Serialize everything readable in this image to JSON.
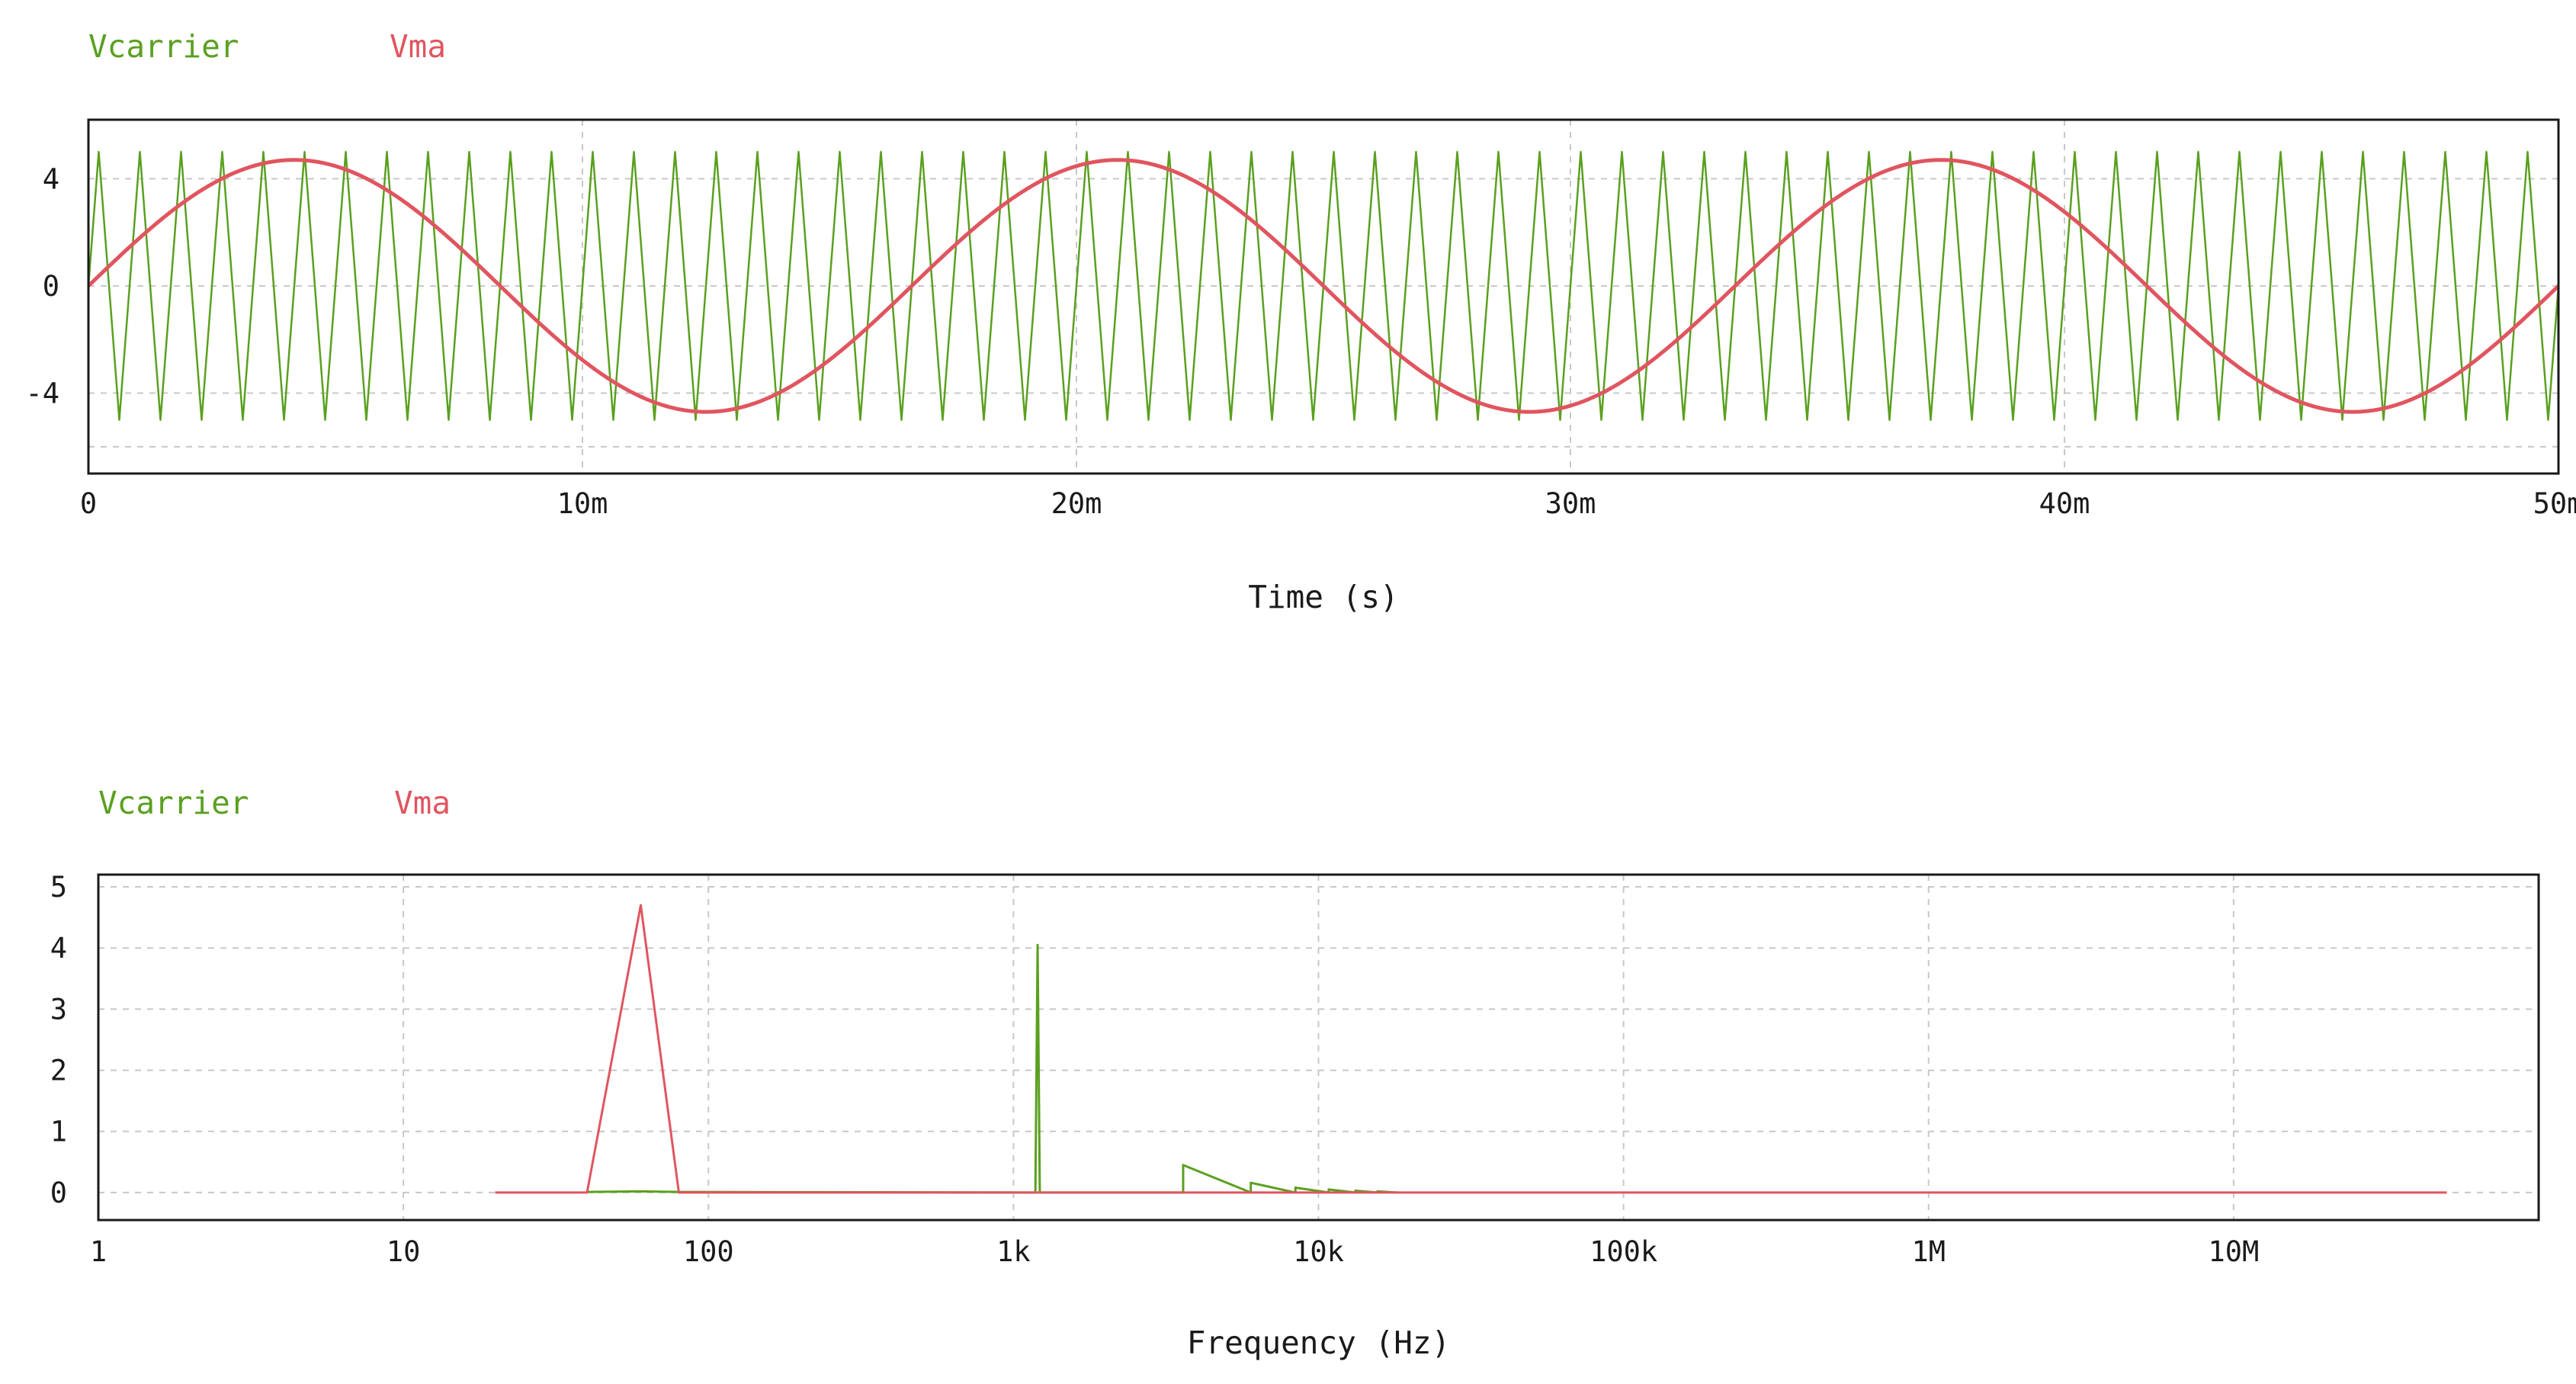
{
  "chart_data": [
    {
      "type": "line",
      "xlabel": "Time (s)",
      "ylabel": "",
      "x_ticks": [
        {
          "value": 0,
          "label": "0"
        },
        {
          "value": 0.01,
          "label": "10m"
        },
        {
          "value": 0.02,
          "label": "20m"
        },
        {
          "value": 0.03,
          "label": "30m"
        },
        {
          "value": 0.04,
          "label": "40m"
        },
        {
          "value": 0.05,
          "label": "50m"
        }
      ],
      "y_ticks": [
        {
          "value": 4,
          "label": "4"
        },
        {
          "value": 0,
          "label": "0"
        },
        {
          "value": -4,
          "label": "-4"
        }
      ],
      "xlim": [
        0,
        0.05
      ],
      "ylim": [
        -7,
        6.2
      ],
      "grid": true,
      "legend_position": "top-left",
      "series": [
        {
          "name": "Vcarrier",
          "color": "#5aa020",
          "shape": "triangle",
          "amplitude": 5,
          "frequency_hz": 1200,
          "phase_offset": 0.25
        },
        {
          "name": "Vma",
          "color": "#e0555f",
          "shape": "sine",
          "amplitude": 4.7,
          "frequency_hz": 60,
          "phase_offset": 0
        }
      ]
    },
    {
      "type": "line",
      "xlabel": "Frequency (Hz)",
      "ylabel": "",
      "x_scale": "log",
      "x_ticks": [
        {
          "value": 1,
          "label": "1"
        },
        {
          "value": 10,
          "label": "10"
        },
        {
          "value": 100,
          "label": "100"
        },
        {
          "value": 1000,
          "label": "1k"
        },
        {
          "value": 10000,
          "label": "10k"
        },
        {
          "value": 100000,
          "label": "100k"
        },
        {
          "value": 1000000,
          "label": "1M"
        },
        {
          "value": 10000000,
          "label": "10M"
        }
      ],
      "y_ticks": [
        {
          "value": 5,
          "label": "5"
        },
        {
          "value": 4,
          "label": "4"
        },
        {
          "value": 3,
          "label": "3"
        },
        {
          "value": 2,
          "label": "2"
        },
        {
          "value": 1,
          "label": "1"
        },
        {
          "value": 0,
          "label": "0"
        }
      ],
      "xlim": [
        1,
        100000000
      ],
      "ylim": [
        -0.45,
        5.2
      ],
      "grid": true,
      "legend_position": "top-left",
      "series": [
        {
          "name": "Vcarrier",
          "color": "#5aa020",
          "x": [
            40,
            60,
            80,
            1180,
            1200,
            1200,
            1200,
            1220,
            3600,
            3600,
            6000,
            6000,
            8400,
            8400,
            10800,
            10800,
            13200,
            13200,
            15600,
            15600,
            18000,
            18000
          ],
          "y": [
            0.01,
            0.02,
            0.01,
            0.0,
            4.05,
            2.0,
            4.05,
            0.0,
            0.0,
            0.45,
            0.0,
            0.16,
            0.0,
            0.08,
            0.0,
            0.05,
            0.0,
            0.03,
            0.0,
            0.02,
            0.0,
            0.02
          ]
        },
        {
          "name": "Vma",
          "color": "#e0555f",
          "x": [
            20,
            40,
            60,
            80,
            1200,
            2400,
            50000000
          ],
          "y": [
            0.0,
            0.0,
            4.7,
            0.0,
            0.0,
            0.0,
            0.0
          ]
        }
      ]
    }
  ]
}
